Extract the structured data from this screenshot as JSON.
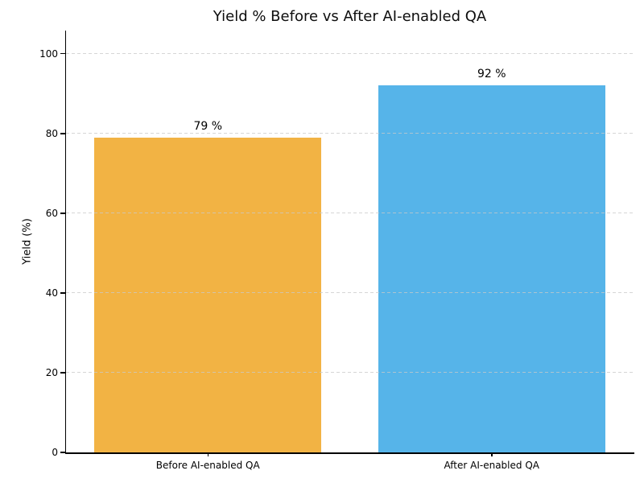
{
  "chart_data": {
    "type": "bar",
    "title": "Yield % Before vs After AI-enabled QA",
    "xlabel": "",
    "ylabel": "Yield (%)",
    "categories": [
      "Before AI-enabled QA",
      "After AI-enabled QA"
    ],
    "values": [
      79,
      92
    ],
    "bar_labels": [
      "79 %",
      "92 %"
    ],
    "bar_colors": [
      "#F2B344",
      "#56B4E9"
    ],
    "yticks": [
      0,
      20,
      40,
      60,
      80,
      100
    ],
    "ytick_labels": [
      "0",
      "20",
      "40",
      "60",
      "80",
      "100"
    ],
    "ylim": [
      0,
      105.6
    ],
    "grid": "horizontal-dashed",
    "gridline_color": "#c9c9c9",
    "axis_color": "#000000",
    "background_color": "#ffffff",
    "legend": "none"
  }
}
